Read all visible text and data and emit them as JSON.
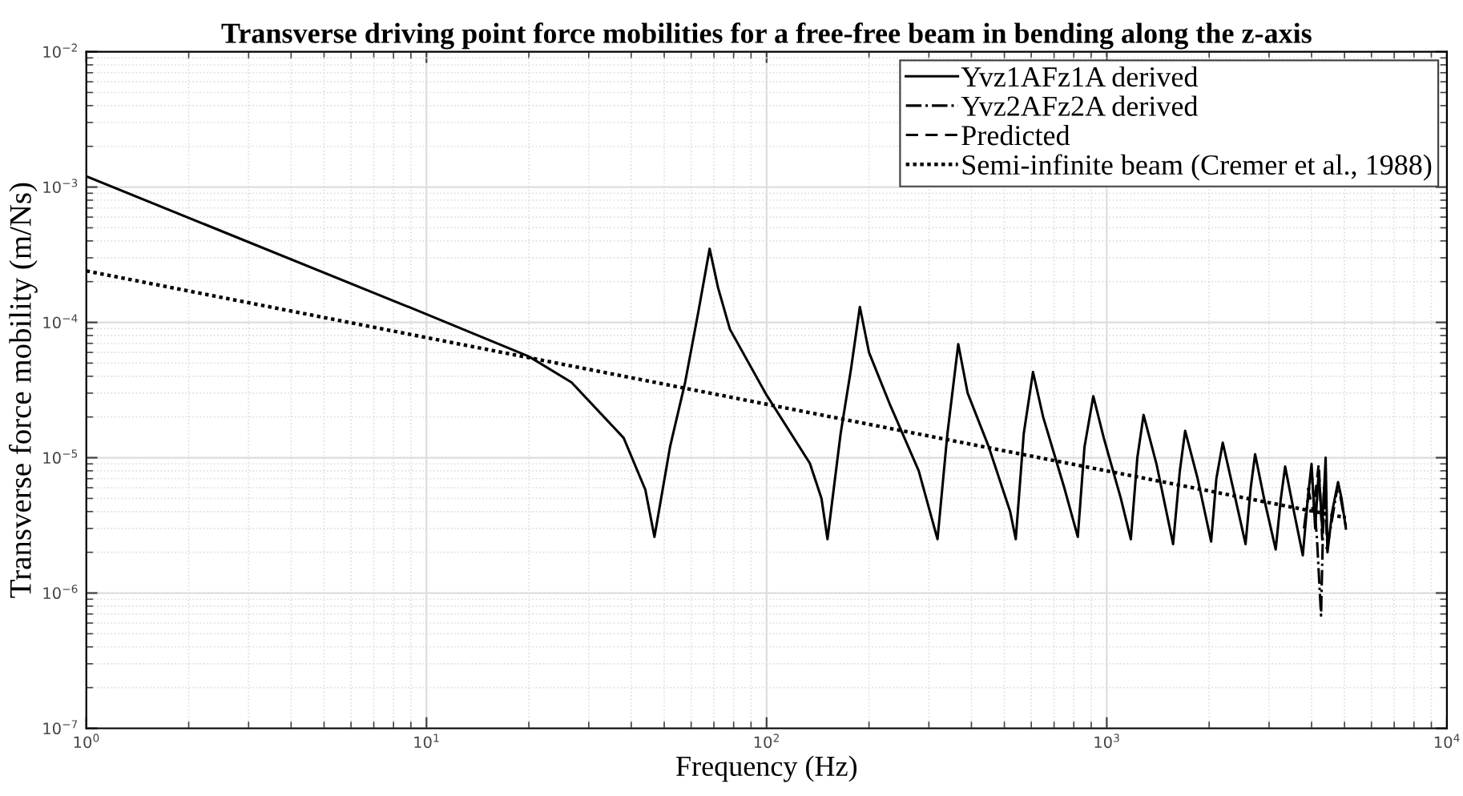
{
  "chart_data": {
    "type": "line",
    "title": "Transverse driving point force mobilities for a free-free beam in bending along the z-axis",
    "xlabel": "Frequency (Hz)",
    "ylabel": "Transverse force mobility (m/Ns)",
    "log": "xy",
    "grid": true,
    "legend": "top right",
    "xlim": [
      1,
      10000
    ],
    "ylim": [
      1e-07,
      0.01
    ],
    "xticks": [
      {
        "value": 1,
        "label": "10$^{0}$"
      },
      {
        "value": 10,
        "label": "10$^{1}$"
      },
      {
        "value": 100,
        "label": "10$^{2}$"
      },
      {
        "value": 1000,
        "label": "10$^{3}$"
      },
      {
        "value": 10000,
        "label": "10$^{4}$"
      }
    ],
    "yticks": [
      {
        "value": 1e-07,
        "label": "10$^{−7}$"
      },
      {
        "value": 1e-06,
        "label": "10$^{−6}$"
      },
      {
        "value": 1e-05,
        "label": "10$^{−5}$"
      },
      {
        "value": 0.0001,
        "label": "10$^{−4}$"
      },
      {
        "value": 0.001,
        "label": "10$^{−3}$"
      },
      {
        "value": 0.01,
        "label": "10$^{−2}$"
      }
    ],
    "series": [
      {
        "name": "Yvz1AFz1A derived",
        "color": "#000000",
        "line_style": "solid",
        "x": [
          1,
          10,
          20,
          26.7,
          38,
          44,
          46.8,
          52,
          57.6,
          63,
          68,
          72,
          78,
          100,
          134,
          145,
          151,
          165,
          177,
          188,
          200,
          230,
          280,
          318,
          340,
          366,
          390,
          450,
          520,
          540,
          570,
          607,
          650,
          750,
          822,
          860,
          913,
          980,
          1100,
          1177,
          1230,
          1283,
          1400,
          1567,
          1640,
          1700,
          1850,
          2027,
          2100,
          2193,
          2350,
          2559,
          2650,
          2730,
          2900,
          3138,
          3250,
          3345,
          3550,
          3770,
          3900,
          4000,
          4100,
          4200,
          4300,
          4400,
          4455,
          4600,
          4786,
          4900,
          5047
        ],
        "values": [
          0.0012,
          0.000115,
          5.6e-05,
          3.6e-05,
          1.4e-05,
          5.8e-06,
          2.6e-06,
          1.2e-05,
          3.6e-05,
          0.00012,
          0.00035,
          0.00018,
          8.9e-05,
          2.9e-05,
          9.1e-06,
          5e-06,
          2.5e-06,
          1.5e-05,
          4.5e-05,
          0.00013,
          6e-05,
          2.5e-05,
          8e-06,
          2.5e-06,
          1.5e-05,
          6.9e-05,
          3e-05,
          1.2e-05,
          4e-06,
          2.5e-06,
          1.5e-05,
          4.3e-05,
          2e-05,
          6e-06,
          2.6e-06,
          1.2e-05,
          2.85e-05,
          1.4e-05,
          5e-06,
          2.5e-06,
          1e-05,
          2.07e-05,
          9e-06,
          2.3e-06,
          8e-06,
          1.58e-05,
          7e-06,
          2.4e-06,
          7e-06,
          1.29e-05,
          6e-06,
          2.3e-06,
          6e-06,
          1.06e-05,
          5e-06,
          2.1e-06,
          5e-06,
          8.6e-06,
          4e-06,
          1.9e-06,
          5e-06,
          9e-06,
          3e-06,
          8e-06,
          3e-06,
          1e-05,
          2e-06,
          4e-06,
          6.6e-06,
          5e-06,
          3e-06
        ]
      },
      {
        "name": "Yvz2AFz2A derived",
        "color": "#000000",
        "line_style": "dashdot",
        "x": [
          3800,
          4000,
          4150,
          4266,
          4350,
          4455,
          4786,
          5047
        ],
        "values": [
          3e-06,
          8e-06,
          2.5e-06,
          6.8e-07,
          6e-06,
          2.2e-06,
          6.4e-06,
          3.1e-06
        ]
      },
      {
        "name": "Predicted",
        "color": "#000000",
        "line_style": "dashed",
        "x": [
          3900,
          4050,
          4200,
          4300,
          4450
        ],
        "values": [
          6e-06,
          4e-06,
          9e-06,
          2.5e-06,
          2.1e-06
        ]
      },
      {
        "name": "Semi-infinite beam (Cremer et al., 1988)",
        "color": "#000000",
        "line_style": "dotted",
        "x": [
          1,
          5047
        ],
        "values": [
          0.00024,
          3.6e-06
        ]
      }
    ]
  }
}
